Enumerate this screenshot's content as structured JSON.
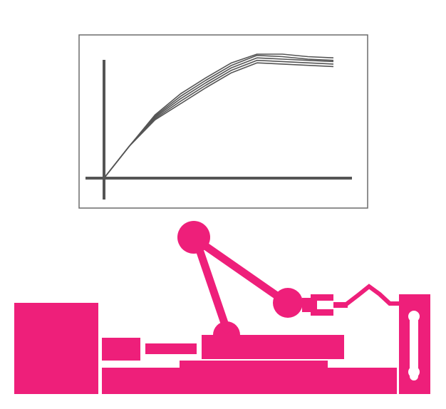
{
  "colors": {
    "machine": "#EE1F7A",
    "chart_line": "#555555",
    "chart_frame": "#6b6b6b",
    "background": "#ffffff"
  },
  "chart_data": {
    "type": "line",
    "title": "",
    "xlabel": "",
    "ylabel": "",
    "grid": false,
    "legend": "none",
    "xlim": [
      0,
      10
    ],
    "ylim": [
      0,
      10
    ],
    "x": [
      0,
      1,
      2,
      3,
      4,
      5,
      6,
      7,
      8,
      9
    ],
    "series": [
      {
        "values": [
          0,
          2.6,
          5.1,
          6.8,
          8.1,
          9.3,
          10.0,
          10.0,
          9.8,
          9.7
        ]
      },
      {
        "values": [
          0,
          2.6,
          5.0,
          6.6,
          7.9,
          9.1,
          9.9,
          9.8,
          9.6,
          9.5
        ]
      },
      {
        "values": [
          0,
          2.6,
          4.9,
          6.4,
          7.7,
          8.9,
          9.7,
          9.6,
          9.5,
          9.4
        ]
      },
      {
        "values": [
          0,
          2.6,
          4.8,
          6.2,
          7.5,
          8.7,
          9.5,
          9.4,
          9.3,
          9.2
        ]
      },
      {
        "values": [
          0,
          2.6,
          4.7,
          6.0,
          7.3,
          8.5,
          9.3,
          9.2,
          9.1,
          9.0
        ]
      }
    ]
  },
  "icons": {
    "robot_arm": "robot-arm-icon",
    "machine_base": "machine-base-icon",
    "control_cabinet": "control-cabinet-icon",
    "cable_chain": "cable-chain-icon"
  }
}
